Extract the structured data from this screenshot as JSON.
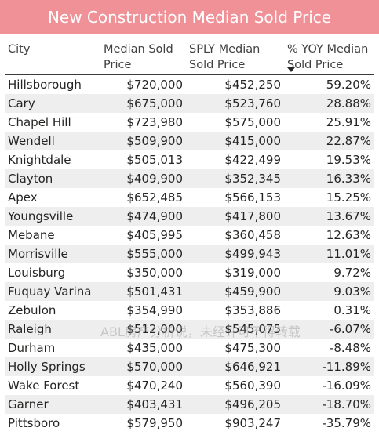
{
  "title": "New Construction Median Sold Price",
  "headers": [
    {
      "label": "City"
    },
    {
      "label": "Median Sold Price"
    },
    {
      "label": "SPLY Median Sold Price"
    },
    {
      "label": "% YOY Median Sold Price"
    }
  ],
  "sort_column": "% YOY Median Sold Price",
  "sort_icon": "sort-descending-icon",
  "rows": [
    {
      "city": "Hillsborough",
      "median": "$720,000",
      "sply": "$452,250",
      "yoy": "59.20%"
    },
    {
      "city": "Cary",
      "median": "$675,000",
      "sply": "$523,760",
      "yoy": "28.88%"
    },
    {
      "city": "Chapel Hill",
      "median": "$723,980",
      "sply": "$575,000",
      "yoy": "25.91%"
    },
    {
      "city": "Wendell",
      "median": "$509,900",
      "sply": "$415,000",
      "yoy": "22.87%"
    },
    {
      "city": "Knightdale",
      "median": "$505,013",
      "sply": "$422,499",
      "yoy": "19.53%"
    },
    {
      "city": "Clayton",
      "median": "$409,900",
      "sply": "$352,345",
      "yoy": "16.33%"
    },
    {
      "city": "Apex",
      "median": "$652,485",
      "sply": "$566,153",
      "yoy": "15.25%"
    },
    {
      "city": "Youngsville",
      "median": "$474,900",
      "sply": "$417,800",
      "yoy": "13.67%"
    },
    {
      "city": "Mebane",
      "median": "$405,995",
      "sply": "$360,458",
      "yoy": "12.63%"
    },
    {
      "city": "Morrisville",
      "median": "$555,000",
      "sply": "$499,943",
      "yoy": "11.01%"
    },
    {
      "city": "Louisburg",
      "median": "$350,000",
      "sply": "$319,000",
      "yoy": "9.72%"
    },
    {
      "city": "Fuquay Varina",
      "median": "$501,431",
      "sply": "$459,900",
      "yoy": "9.03%"
    },
    {
      "city": "Zebulon",
      "median": "$354,990",
      "sply": "$353,886",
      "yoy": "0.31%"
    },
    {
      "city": "Raleigh",
      "median": "$512,000",
      "sply": "$545,075",
      "yoy": "-6.07%"
    },
    {
      "city": "Durham",
      "median": "$435,000",
      "sply": "$475,300",
      "yoy": "-8.48%"
    },
    {
      "city": "Holly Springs",
      "median": "$570,000",
      "sply": "$646,921",
      "yoy": "-11.89%"
    },
    {
      "city": "Wake Forest",
      "median": "$470,240",
      "sply": "$560,390",
      "yoy": "-16.09%"
    },
    {
      "city": "Garner",
      "median": "$403,431",
      "sply": "$496,205",
      "yoy": "-18.70%"
    },
    {
      "city": "Pittsboro",
      "median": "$579,950",
      "sply": "$903,247",
      "yoy": "-35.79%"
    }
  ],
  "watermark": "ABL房产分析说，未经许可不得转载",
  "colors": {
    "title_bg": "#ef9196",
    "title_text": "#ffffff",
    "stripe": "#eeeeee"
  }
}
